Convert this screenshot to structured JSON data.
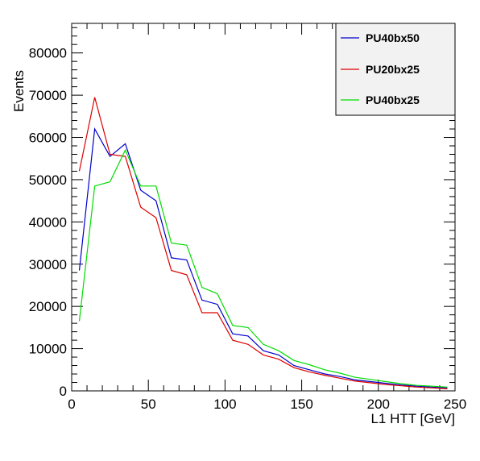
{
  "chart_data": {
    "type": "line",
    "xlabel": "L1 HTT [GeV]",
    "ylabel": "Events",
    "xlim": [
      0,
      250
    ],
    "ylim": [
      0,
      87000
    ],
    "x_ticks": [
      "0",
      "50",
      "100",
      "150",
      "200",
      "250"
    ],
    "y_ticks": [
      "0",
      "10000",
      "20000",
      "30000",
      "40000",
      "50000",
      "60000",
      "70000",
      "80000"
    ],
    "grid": false,
    "legend_position": "top-right",
    "x": [
      5,
      15,
      25,
      35,
      45,
      55,
      65,
      75,
      85,
      95,
      105,
      115,
      125,
      135,
      145,
      155,
      165,
      175,
      185,
      195,
      205,
      215,
      225,
      235,
      245
    ],
    "series": [
      {
        "name": "PU40bx50",
        "color": "#0000cc",
        "values": [
          28500,
          62000,
          55500,
          58500,
          47500,
          45000,
          31500,
          31000,
          21500,
          20500,
          13500,
          13000,
          9500,
          8500,
          6000,
          5000,
          4000,
          3400,
          2600,
          2200,
          1800,
          1400,
          1100,
          900,
          700
        ]
      },
      {
        "name": "PU20bx25",
        "color": "#dd0000",
        "values": [
          52000,
          69500,
          56000,
          55500,
          43500,
          41000,
          28500,
          27500,
          18500,
          18500,
          12000,
          11000,
          8500,
          7500,
          5500,
          4500,
          3700,
          3000,
          2300,
          1900,
          1500,
          1200,
          900,
          700,
          500
        ]
      },
      {
        "name": "PU40bx25",
        "color": "#00dd00",
        "values": [
          16500,
          48500,
          49500,
          57000,
          48500,
          48500,
          35000,
          34500,
          24500,
          23000,
          15500,
          15000,
          11000,
          9500,
          7200,
          6200,
          5000,
          4200,
          3200,
          2700,
          2200,
          1700,
          1300,
          1100,
          900
        ]
      }
    ]
  }
}
